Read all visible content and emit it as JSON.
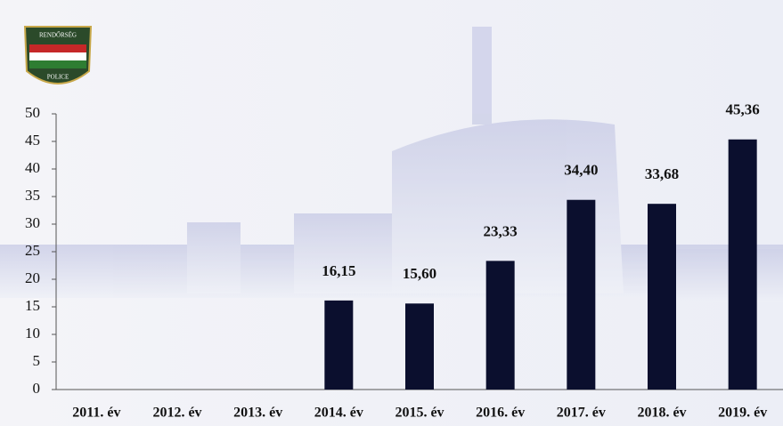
{
  "chart_data": {
    "type": "bar",
    "categories": [
      "2011. év",
      "2012. év",
      "2013. év",
      "2014. év",
      "2015. év",
      "2016. év",
      "2017. év",
      "2018. év",
      "2019. év"
    ],
    "values": [
      null,
      null,
      null,
      16.15,
      15.6,
      23.33,
      34.4,
      33.68,
      45.36
    ],
    "value_labels": [
      null,
      null,
      null,
      "16,15",
      "15,60",
      "23,33",
      "34,40",
      "33,68",
      "45,36"
    ],
    "color": "#0b0f2e",
    "ylim": [
      0,
      50
    ],
    "yticks": [
      0,
      5,
      10,
      15,
      20,
      25,
      30,
      35,
      40,
      45,
      50
    ],
    "grid": false
  },
  "logo": {
    "top": "RENDŐRSÉG",
    "bottom": "POLICE"
  }
}
